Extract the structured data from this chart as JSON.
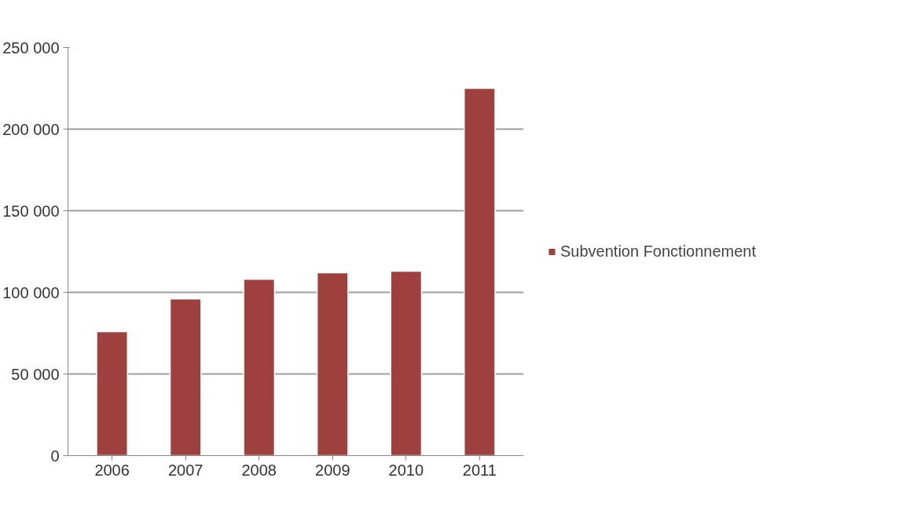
{
  "chart_data": {
    "type": "bar",
    "categories": [
      "2006",
      "2007",
      "2008",
      "2009",
      "2010",
      "2011"
    ],
    "series": [
      {
        "name": "Subvention Fonctionnement",
        "color": "#9e413e",
        "values": [
          76000,
          96000,
          108000,
          112000,
          113000,
          225000
        ]
      }
    ],
    "ylim": [
      0,
      250000
    ],
    "yticks": [
      {
        "value": 0,
        "label": "0"
      },
      {
        "value": 50000,
        "label": "50 000"
      },
      {
        "value": 100000,
        "label": "100 000"
      },
      {
        "value": 150000,
        "label": "150 000"
      },
      {
        "value": 200000,
        "label": "200 000"
      },
      {
        "value": 250000,
        "label": "250 000"
      }
    ],
    "grid": "y",
    "legend": "right"
  }
}
